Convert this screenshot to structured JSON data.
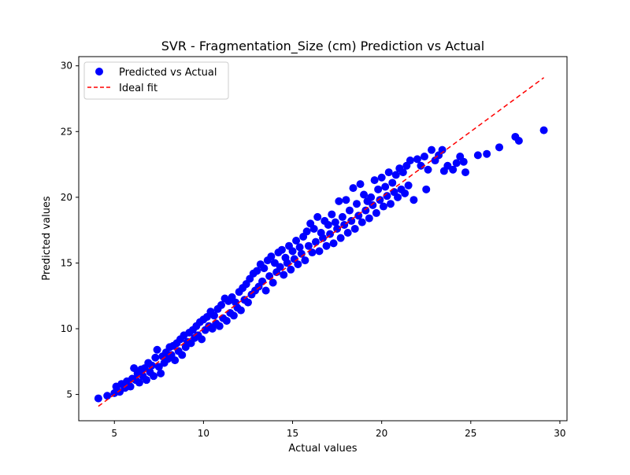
{
  "chart_data": {
    "type": "scatter",
    "title": "SVR - Fragmentation_Size (cm) Prediction vs Actual",
    "xlabel": "Actual values",
    "ylabel": "Predicted values",
    "xlim": [
      3.0,
      30.4
    ],
    "ylim": [
      3.0,
      30.7
    ],
    "xticks": [
      5,
      10,
      15,
      20,
      25,
      30
    ],
    "yticks": [
      5,
      10,
      15,
      20,
      25,
      30
    ],
    "grid": false,
    "legend_position": "top-left",
    "colors": {
      "points": "#0000ff",
      "ideal": "#ff0000"
    },
    "series": [
      {
        "name": "Predicted vs Actual",
        "kind": "scatter",
        "points": [
          [
            4.1,
            4.7
          ],
          [
            4.6,
            4.9
          ],
          [
            5.0,
            5.1
          ],
          [
            5.1,
            5.6
          ],
          [
            5.3,
            5.2
          ],
          [
            5.4,
            5.8
          ],
          [
            5.6,
            5.5
          ],
          [
            5.7,
            6.0
          ],
          [
            5.9,
            5.6
          ],
          [
            6.0,
            6.2
          ],
          [
            6.1,
            7.0
          ],
          [
            6.2,
            6.1
          ],
          [
            6.3,
            6.6
          ],
          [
            6.4,
            5.9
          ],
          [
            6.5,
            6.9
          ],
          [
            6.6,
            6.4
          ],
          [
            6.7,
            7.0
          ],
          [
            6.8,
            6.1
          ],
          [
            6.9,
            7.4
          ],
          [
            7.0,
            6.7
          ],
          [
            7.1,
            7.2
          ],
          [
            7.2,
            6.4
          ],
          [
            7.3,
            7.8
          ],
          [
            7.4,
            8.4
          ],
          [
            7.5,
            7.1
          ],
          [
            7.6,
            6.6
          ],
          [
            7.7,
            7.9
          ],
          [
            7.8,
            7.4
          ],
          [
            7.9,
            8.2
          ],
          [
            8.0,
            7.7
          ],
          [
            8.1,
            8.6
          ],
          [
            8.2,
            8.0
          ],
          [
            8.3,
            8.7
          ],
          [
            8.4,
            7.6
          ],
          [
            8.5,
            8.9
          ],
          [
            8.6,
            8.3
          ],
          [
            8.7,
            9.2
          ],
          [
            8.8,
            8.0
          ],
          [
            8.9,
            9.5
          ],
          [
            9.0,
            8.6
          ],
          [
            9.1,
            9.0
          ],
          [
            9.2,
            9.7
          ],
          [
            9.3,
            8.9
          ],
          [
            9.4,
            9.9
          ],
          [
            9.5,
            9.3
          ],
          [
            9.6,
            10.2
          ],
          [
            9.7,
            9.5
          ],
          [
            9.8,
            10.5
          ],
          [
            9.9,
            9.2
          ],
          [
            10.0,
            10.7
          ],
          [
            10.1,
            9.9
          ],
          [
            10.2,
            10.9
          ],
          [
            10.3,
            10.2
          ],
          [
            10.4,
            11.3
          ],
          [
            10.5,
            10.0
          ],
          [
            10.6,
            11.0
          ],
          [
            10.7,
            10.4
          ],
          [
            10.8,
            11.5
          ],
          [
            10.9,
            10.2
          ],
          [
            11.0,
            11.8
          ],
          [
            11.1,
            10.8
          ],
          [
            11.2,
            12.3
          ],
          [
            11.3,
            10.6
          ],
          [
            11.4,
            12.1
          ],
          [
            11.5,
            11.2
          ],
          [
            11.6,
            12.4
          ],
          [
            11.7,
            11.0
          ],
          [
            11.8,
            12.0
          ],
          [
            11.9,
            11.6
          ],
          [
            12.0,
            12.8
          ],
          [
            12.1,
            11.4
          ],
          [
            12.2,
            13.1
          ],
          [
            12.3,
            12.2
          ],
          [
            12.4,
            13.4
          ],
          [
            12.5,
            12.0
          ],
          [
            12.6,
            13.8
          ],
          [
            12.7,
            12.6
          ],
          [
            12.8,
            14.2
          ],
          [
            12.9,
            12.9
          ],
          [
            13.0,
            14.4
          ],
          [
            13.1,
            13.2
          ],
          [
            13.2,
            14.9
          ],
          [
            13.3,
            13.6
          ],
          [
            13.4,
            14.6
          ],
          [
            13.5,
            12.9
          ],
          [
            13.6,
            15.2
          ],
          [
            13.7,
            14.0
          ],
          [
            13.8,
            15.5
          ],
          [
            13.9,
            13.5
          ],
          [
            14.0,
            15.0
          ],
          [
            14.1,
            14.3
          ],
          [
            14.2,
            15.8
          ],
          [
            14.3,
            14.7
          ],
          [
            14.4,
            16.0
          ],
          [
            14.5,
            14.1
          ],
          [
            14.6,
            15.4
          ],
          [
            14.7,
            15.0
          ],
          [
            14.8,
            16.3
          ],
          [
            14.9,
            14.5
          ],
          [
            15.0,
            15.9
          ],
          [
            15.1,
            15.3
          ],
          [
            15.2,
            16.7
          ],
          [
            15.3,
            14.9
          ],
          [
            15.4,
            16.2
          ],
          [
            15.5,
            15.7
          ],
          [
            15.6,
            17.0
          ],
          [
            15.7,
            15.2
          ],
          [
            15.8,
            17.4
          ],
          [
            15.9,
            16.3
          ],
          [
            16.0,
            18.0
          ],
          [
            16.1,
            15.8
          ],
          [
            16.2,
            17.6
          ],
          [
            16.3,
            16.6
          ],
          [
            16.4,
            18.5
          ],
          [
            16.5,
            15.9
          ],
          [
            16.6,
            17.3
          ],
          [
            16.7,
            16.9
          ],
          [
            16.8,
            18.2
          ],
          [
            16.9,
            16.3
          ],
          [
            17.0,
            17.9
          ],
          [
            17.1,
            17.2
          ],
          [
            17.2,
            18.7
          ],
          [
            17.3,
            16.5
          ],
          [
            17.4,
            18.1
          ],
          [
            17.5,
            17.6
          ],
          [
            17.6,
            19.7
          ],
          [
            17.7,
            16.9
          ],
          [
            17.8,
            18.5
          ],
          [
            17.9,
            17.9
          ],
          [
            18.0,
            19.8
          ],
          [
            18.1,
            17.3
          ],
          [
            18.2,
            19.0
          ],
          [
            18.3,
            18.2
          ],
          [
            18.4,
            20.7
          ],
          [
            18.5,
            17.6
          ],
          [
            18.6,
            19.5
          ],
          [
            18.7,
            18.6
          ],
          [
            18.8,
            21.0
          ],
          [
            18.9,
            18.1
          ],
          [
            19.0,
            20.2
          ],
          [
            19.1,
            19.0
          ],
          [
            19.2,
            19.7
          ],
          [
            19.3,
            18.4
          ],
          [
            19.4,
            20.0
          ],
          [
            19.5,
            19.4
          ],
          [
            19.6,
            21.3
          ],
          [
            19.7,
            18.8
          ],
          [
            19.8,
            20.6
          ],
          [
            19.9,
            19.8
          ],
          [
            20.0,
            21.5
          ],
          [
            20.1,
            19.3
          ],
          [
            20.2,
            20.8
          ],
          [
            20.3,
            20.1
          ],
          [
            20.4,
            21.9
          ],
          [
            20.5,
            19.5
          ],
          [
            20.6,
            21.1
          ],
          [
            20.7,
            20.4
          ],
          [
            20.8,
            21.7
          ],
          [
            20.9,
            20.0
          ],
          [
            21.0,
            22.2
          ],
          [
            21.1,
            20.6
          ],
          [
            21.2,
            21.9
          ],
          [
            21.3,
            20.3
          ],
          [
            21.4,
            22.4
          ],
          [
            21.5,
            20.9
          ],
          [
            21.6,
            22.8
          ],
          [
            21.8,
            19.8
          ],
          [
            22.0,
            22.9
          ],
          [
            22.2,
            22.4
          ],
          [
            22.4,
            23.1
          ],
          [
            22.5,
            20.6
          ],
          [
            22.6,
            22.1
          ],
          [
            22.8,
            23.6
          ],
          [
            23.0,
            22.8
          ],
          [
            23.2,
            23.2
          ],
          [
            23.4,
            23.6
          ],
          [
            23.5,
            22.0
          ],
          [
            23.7,
            22.4
          ],
          [
            24.0,
            22.1
          ],
          [
            24.2,
            22.6
          ],
          [
            24.4,
            23.1
          ],
          [
            24.6,
            22.7
          ],
          [
            24.7,
            21.9
          ],
          [
            25.4,
            23.2
          ],
          [
            25.9,
            23.3
          ],
          [
            26.6,
            23.8
          ],
          [
            27.5,
            24.6
          ],
          [
            27.7,
            24.3
          ],
          [
            29.1,
            25.1
          ]
        ]
      },
      {
        "name": "Ideal fit",
        "kind": "line",
        "style": "dashed",
        "points": [
          [
            4.1,
            4.1
          ],
          [
            29.1,
            29.1
          ]
        ]
      }
    ]
  }
}
